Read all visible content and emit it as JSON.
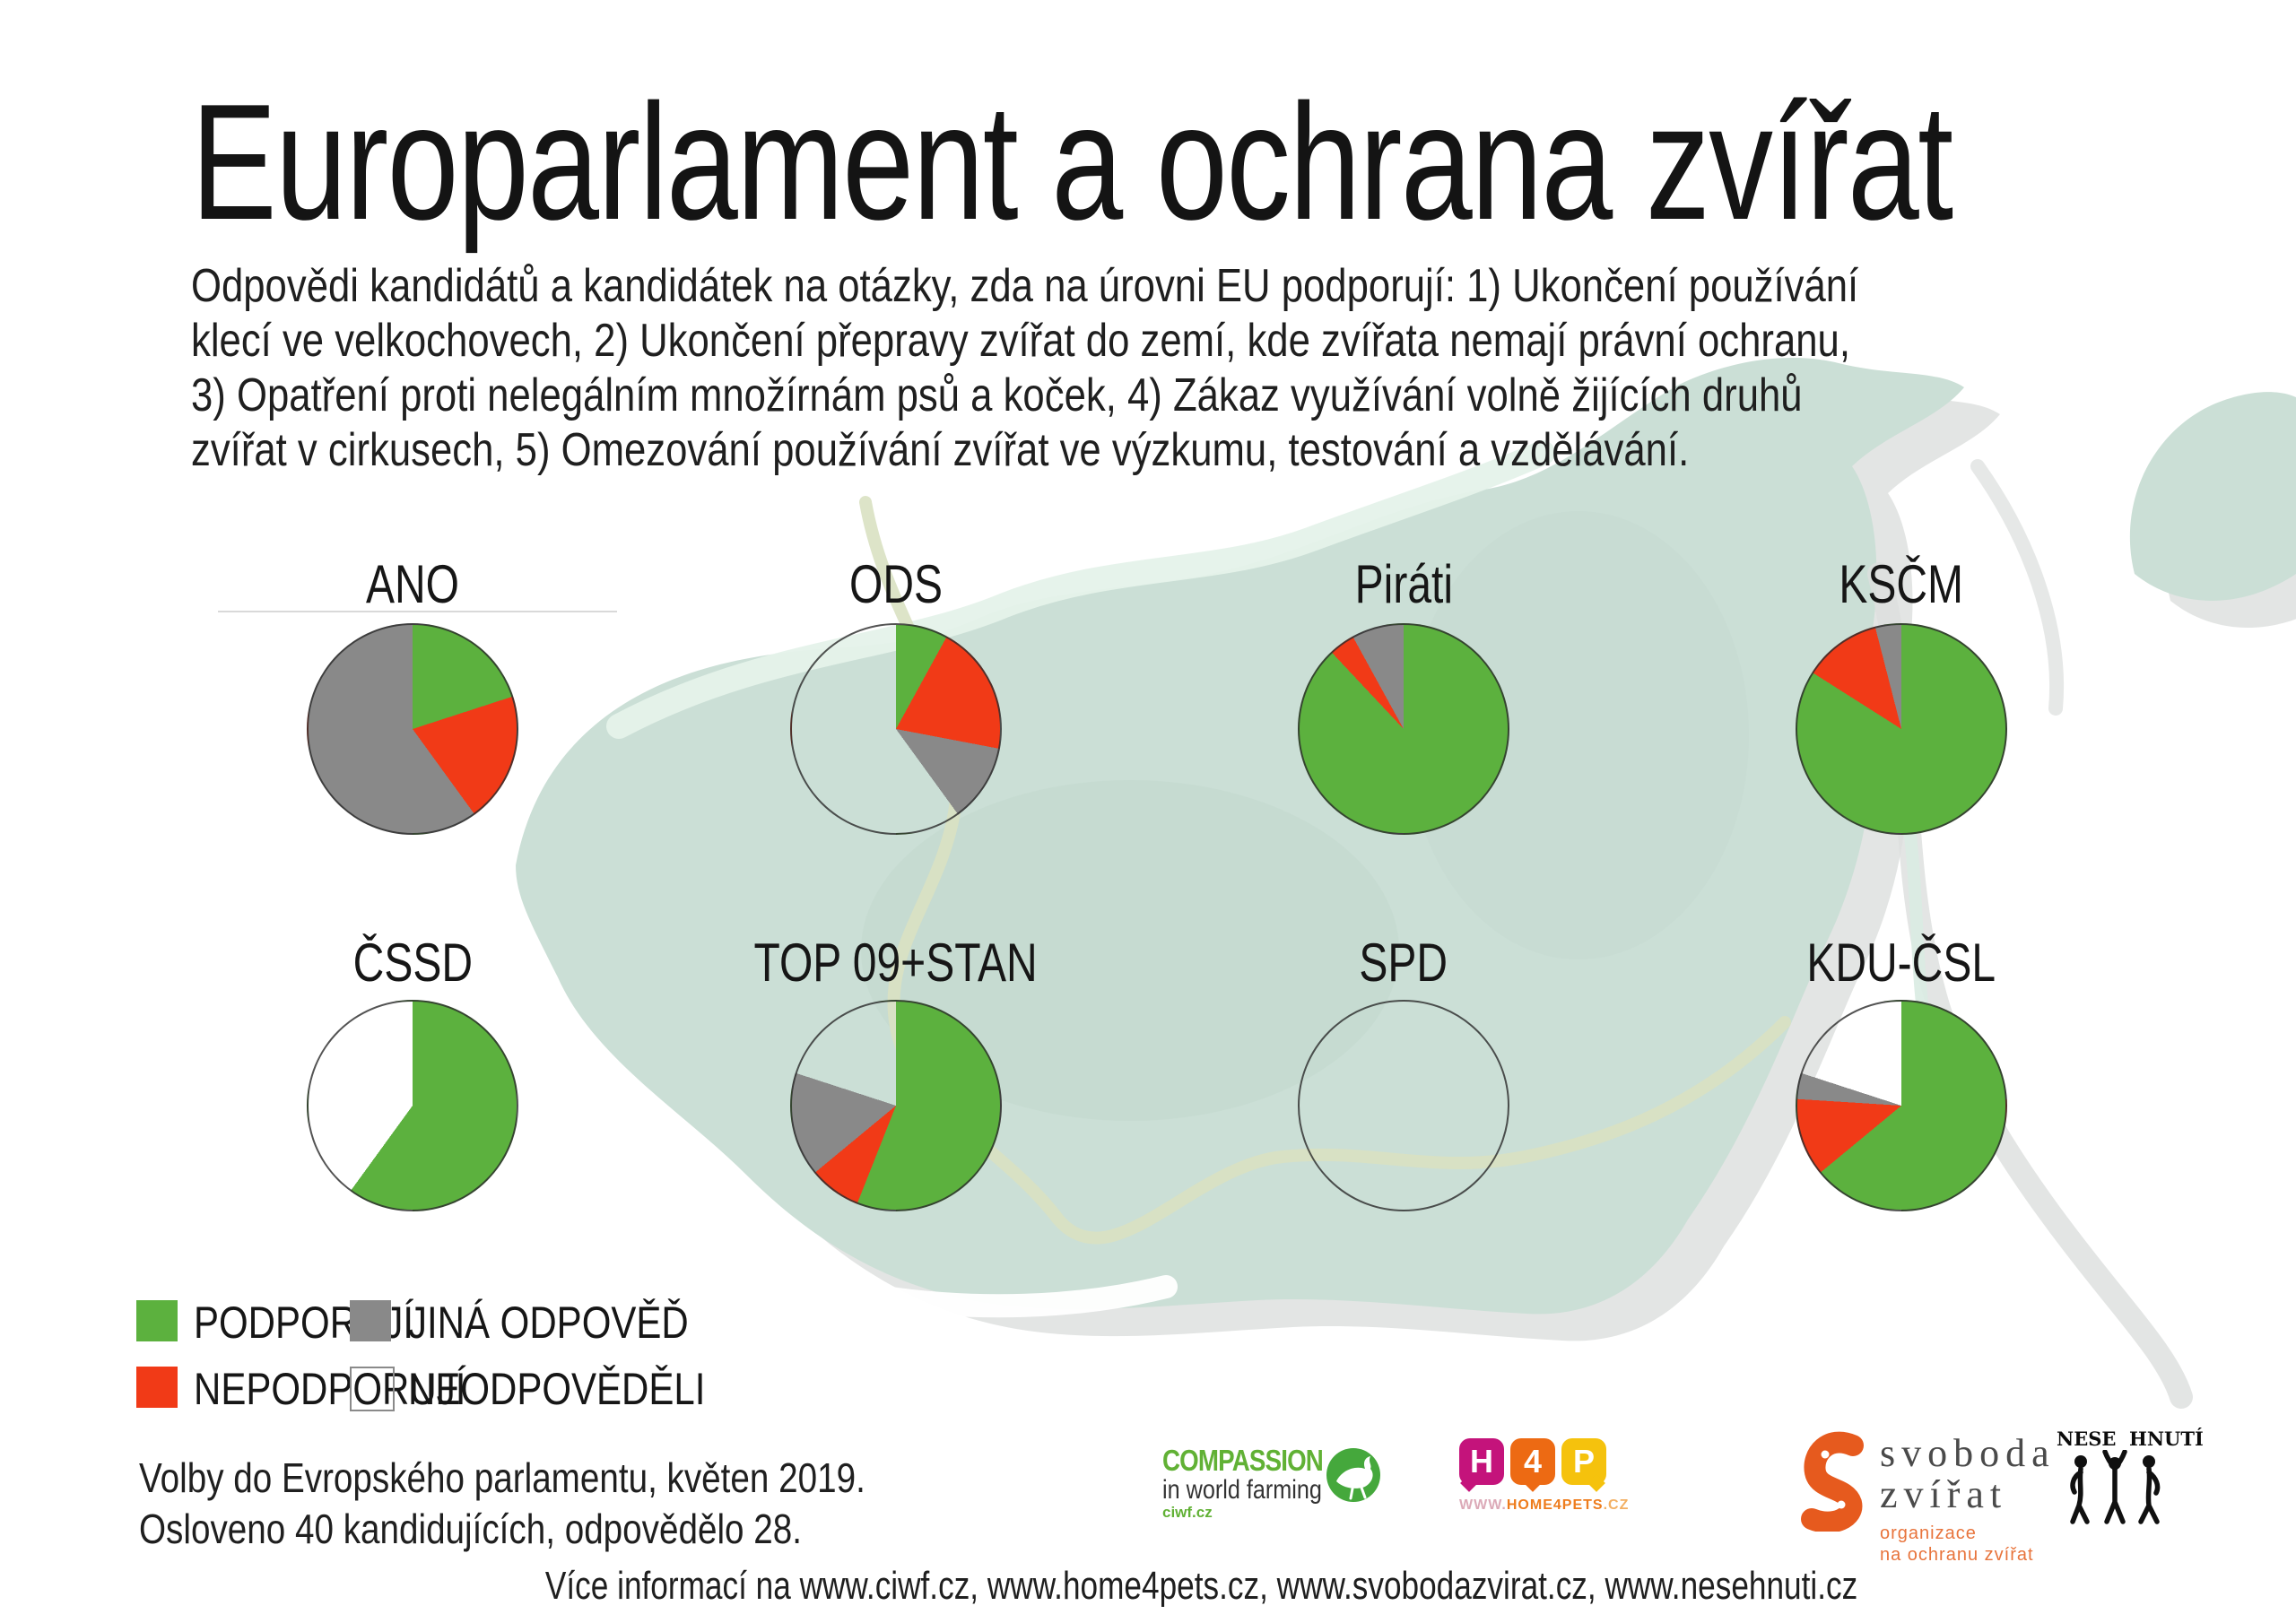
{
  "title": "Europarlament a ochrana zvířat",
  "intro_lines": [
    "Odpovědi kandidátů a kandidátek na otázky, zda na úrovni EU podporují: 1) Ukončení používání",
    "klecí ve velkochovech, 2) Ukončení přepravy zvířat do zemí, kde zvířata nemají právní ochranu,",
    "3) Opatření proti nelegálním množírnám psů a koček, 4) Zákaz využívání volně žijících druhů",
    "zvířat v cirkusech, 5) Omezování používání zvířat ve výzkumu, testování a vzdělávání."
  ],
  "legend": {
    "items": [
      {
        "label": "PODPORUJÍ",
        "color": "#5cb13e"
      },
      {
        "label": "NEPODPORUJÍ",
        "color": "#f13a17"
      },
      {
        "label": "JINÁ ODPOVĚĎ",
        "color": "#898989"
      },
      {
        "label": "NEODPOVĚDĚLI",
        "color": "#ffffff"
      }
    ]
  },
  "footer": {
    "line1": "Volby do Evropského parlamentu, květen 2019.",
    "line2": "Osloveno 40 kandidujících, odpovědělo 28.",
    "info": "Více informací na www.ciwf.cz, www.home4pets.cz, www.svobodazvirat.cz, www.nesehnuti.cz"
  },
  "logos": {
    "ciwf": {
      "line1": "COMPASSION",
      "line2": "in world farming",
      "url": "ciwf.cz"
    },
    "h4p": {
      "letters": [
        "H",
        "4",
        "P"
      ],
      "url_www": "WWW.",
      "url_main": "HOME4PETS",
      "url_tld": ".CZ"
    },
    "svoboda_zvirat": {
      "name_line1": "svoboda",
      "name_line2": "zvířat",
      "sub_line1": "organizace",
      "sub_line2": "na ochranu zvířat"
    },
    "nesehnuti": {
      "name_left": "NESE",
      "name_right": "HNUTÍ"
    }
  },
  "chart_data": {
    "type": "pie",
    "title": "Europarlament a ochrana zvířat",
    "legend": [
      "PODPORUJÍ",
      "NEPODPORUJÍ",
      "JINÁ ODPOVĚĎ",
      "NEODPOVĚDĚLI"
    ],
    "colors": [
      "#5cb13e",
      "#f13a17",
      "#898989",
      "transparent"
    ],
    "start": "12 o'clock, clockwise",
    "unit": "percent of answers (estimated from slice angles)",
    "pies": [
      {
        "party": "ANO",
        "values": [
          20,
          20,
          60,
          0
        ]
      },
      {
        "party": "ODS",
        "values": [
          8,
          20,
          12,
          60
        ]
      },
      {
        "party": "Piráti",
        "values": [
          88,
          4,
          8,
          0
        ]
      },
      {
        "party": "KSČM",
        "values": [
          84,
          12,
          4,
          0
        ]
      },
      {
        "party": "ČSSD",
        "values": [
          60,
          0,
          0,
          40
        ]
      },
      {
        "party": "TOP 09+STAN",
        "values": [
          56,
          8,
          16,
          20
        ]
      },
      {
        "party": "SPD",
        "values": [
          0,
          0,
          0,
          100
        ]
      },
      {
        "party": "KDU-ČSL",
        "values": [
          64,
          12,
          4,
          20
        ]
      }
    ]
  }
}
